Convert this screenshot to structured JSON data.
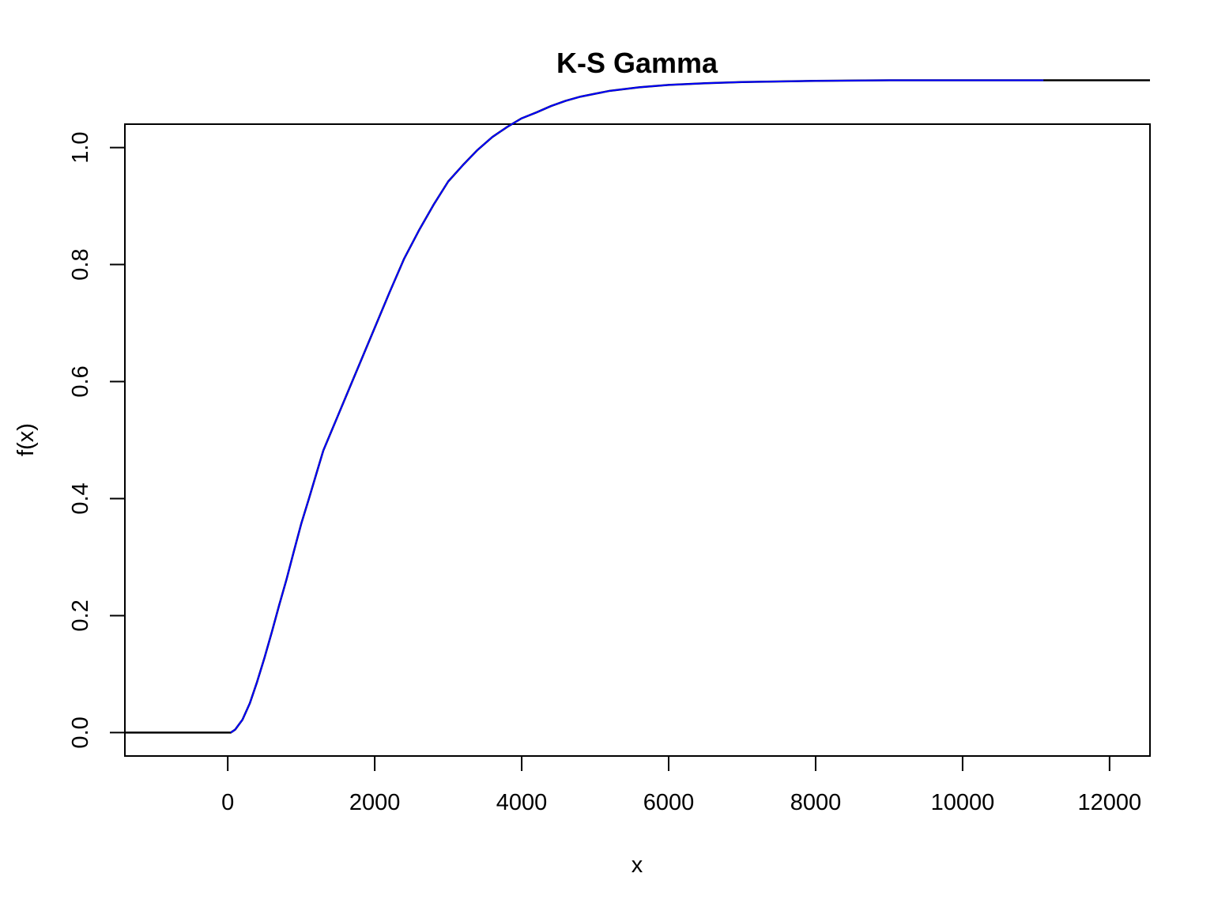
{
  "chart_data": {
    "type": "line",
    "title": "K-S Gamma",
    "xlabel": "x",
    "ylabel": "f(x)",
    "xlim": [
      -1400,
      12550
    ],
    "ylim": [
      -0.04,
      1.04
    ],
    "x_ticks": [
      0,
      2000,
      4000,
      6000,
      8000,
      10000,
      12000
    ],
    "y_ticks": [
      0.0,
      0.2,
      0.4,
      0.6,
      0.8,
      1.0
    ],
    "x_tick_labels": [
      "0",
      "2000",
      "4000",
      "6000",
      "8000",
      "10000",
      "12000"
    ],
    "y_tick_labels": [
      "0.0",
      "0.2",
      "0.4",
      "0.6",
      "0.8",
      "1.0"
    ],
    "grid": false,
    "legend": "none",
    "series": [
      {
        "color": "#000000",
        "style": "step",
        "x": [
          -1400,
          0,
          40,
          100,
          200,
          300,
          400,
          500,
          600,
          700,
          800,
          900,
          1000,
          1100,
          1200,
          1300,
          1400,
          1500,
          1600,
          1700,
          1800,
          1900,
          2000,
          2200,
          2400,
          2600,
          2800,
          3000,
          3200,
          3400,
          3600,
          3800,
          4000,
          4200,
          4400,
          4600,
          4800,
          5000,
          5200,
          5400,
          5600,
          5800,
          6000,
          6500,
          7000,
          7500,
          8000,
          9000,
          10000,
          11100,
          12550
        ],
        "y": [
          0.0,
          0.0,
          0.0,
          0.005,
          0.022,
          0.05,
          0.087,
          0.128,
          0.172,
          0.218,
          0.262,
          0.31,
          0.357,
          0.398,
          0.44,
          0.482,
          0.512,
          0.542,
          0.572,
          0.602,
          0.632,
          0.662,
          0.692,
          0.752,
          0.81,
          0.858,
          0.902,
          0.942,
          0.97,
          0.996,
          1.018,
          1.035,
          1.05,
          1.06,
          1.071,
          1.08,
          1.087,
          1.092,
          1.097,
          1.1,
          1.103,
          1.105,
          1.107,
          1.11,
          1.112,
          1.113,
          1.114,
          1.115,
          1.115,
          1.115,
          1.115
        ]
      },
      {
        "color": "#0000ff",
        "style": "line",
        "x": [
          40,
          100,
          200,
          300,
          400,
          500,
          600,
          700,
          800,
          900,
          1000,
          1100,
          1200,
          1300,
          1400,
          1500,
          1600,
          1700,
          1800,
          1900,
          2000,
          2200,
          2400,
          2600,
          2800,
          3000,
          3200,
          3400,
          3600,
          3800,
          4000,
          4200,
          4400,
          4600,
          4800,
          5000,
          5200,
          5400,
          5600,
          5800,
          6000,
          6500,
          7000,
          7500,
          8000,
          9000,
          10000,
          11100
        ],
        "y": [
          0.0,
          0.005,
          0.022,
          0.05,
          0.087,
          0.128,
          0.172,
          0.218,
          0.262,
          0.31,
          0.357,
          0.398,
          0.44,
          0.482,
          0.512,
          0.542,
          0.572,
          0.602,
          0.632,
          0.662,
          0.692,
          0.752,
          0.81,
          0.858,
          0.902,
          0.942,
          0.97,
          0.996,
          1.018,
          1.035,
          1.05,
          1.06,
          1.071,
          1.08,
          1.087,
          1.092,
          1.097,
          1.1,
          1.103,
          1.105,
          1.107,
          1.11,
          1.112,
          1.113,
          1.114,
          1.115,
          1.115,
          1.115
        ]
      }
    ]
  }
}
